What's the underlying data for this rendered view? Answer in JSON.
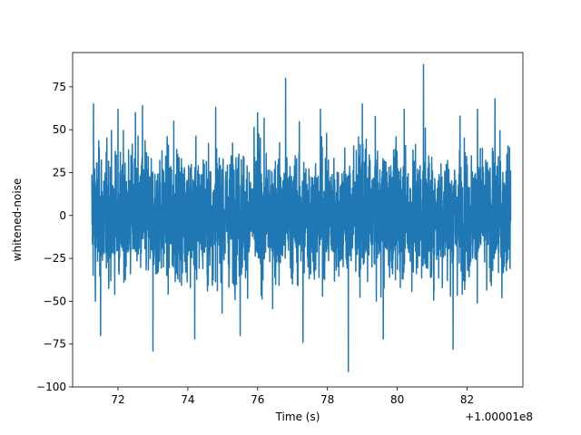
{
  "chart_data": {
    "type": "line",
    "title": "",
    "xlabel": "Time (s)",
    "ylabel": "whitened-noise",
    "x_offset_label": "+1.00001e8",
    "xlim": [
      70.7,
      83.6
    ],
    "ylim": [
      -100,
      95
    ],
    "x_ticks": [
      72,
      74,
      76,
      78,
      80,
      82
    ],
    "x_tick_labels": [
      "72",
      "74",
      "76",
      "78",
      "80",
      "82"
    ],
    "y_ticks": [
      -100,
      -75,
      -50,
      -25,
      0,
      25,
      50,
      75
    ],
    "y_tick_labels": [
      "−100",
      "−75",
      "−50",
      "−25",
      "0",
      "25",
      "50",
      "75"
    ],
    "grid": false,
    "series": [
      {
        "color": "#1f77b4",
        "x_start": 71.25,
        "x_end": 83.25,
        "envelope_typical": [
          -40,
          42
        ],
        "spikes": [
          {
            "x": 71.3,
            "y": 65
          },
          {
            "x": 71.35,
            "y": -50
          },
          {
            "x": 71.5,
            "y": -70
          },
          {
            "x": 72.0,
            "y": 62
          },
          {
            "x": 72.5,
            "y": 60
          },
          {
            "x": 72.7,
            "y": 64
          },
          {
            "x": 73.0,
            "y": -79
          },
          {
            "x": 73.6,
            "y": 55
          },
          {
            "x": 74.2,
            "y": -72
          },
          {
            "x": 74.8,
            "y": 63
          },
          {
            "x": 75.5,
            "y": -70
          },
          {
            "x": 76.0,
            "y": 60
          },
          {
            "x": 76.8,
            "y": 80
          },
          {
            "x": 77.3,
            "y": -74
          },
          {
            "x": 77.8,
            "y": 62
          },
          {
            "x": 78.6,
            "y": -91
          },
          {
            "x": 79.0,
            "y": 65
          },
          {
            "x": 79.6,
            "y": -72
          },
          {
            "x": 80.2,
            "y": 62
          },
          {
            "x": 80.75,
            "y": 88
          },
          {
            "x": 81.6,
            "y": -78
          },
          {
            "x": 81.8,
            "y": 58
          },
          {
            "x": 82.3,
            "y": 62
          },
          {
            "x": 82.8,
            "y": 68
          },
          {
            "x": 83.0,
            "y": -48
          }
        ]
      }
    ]
  }
}
